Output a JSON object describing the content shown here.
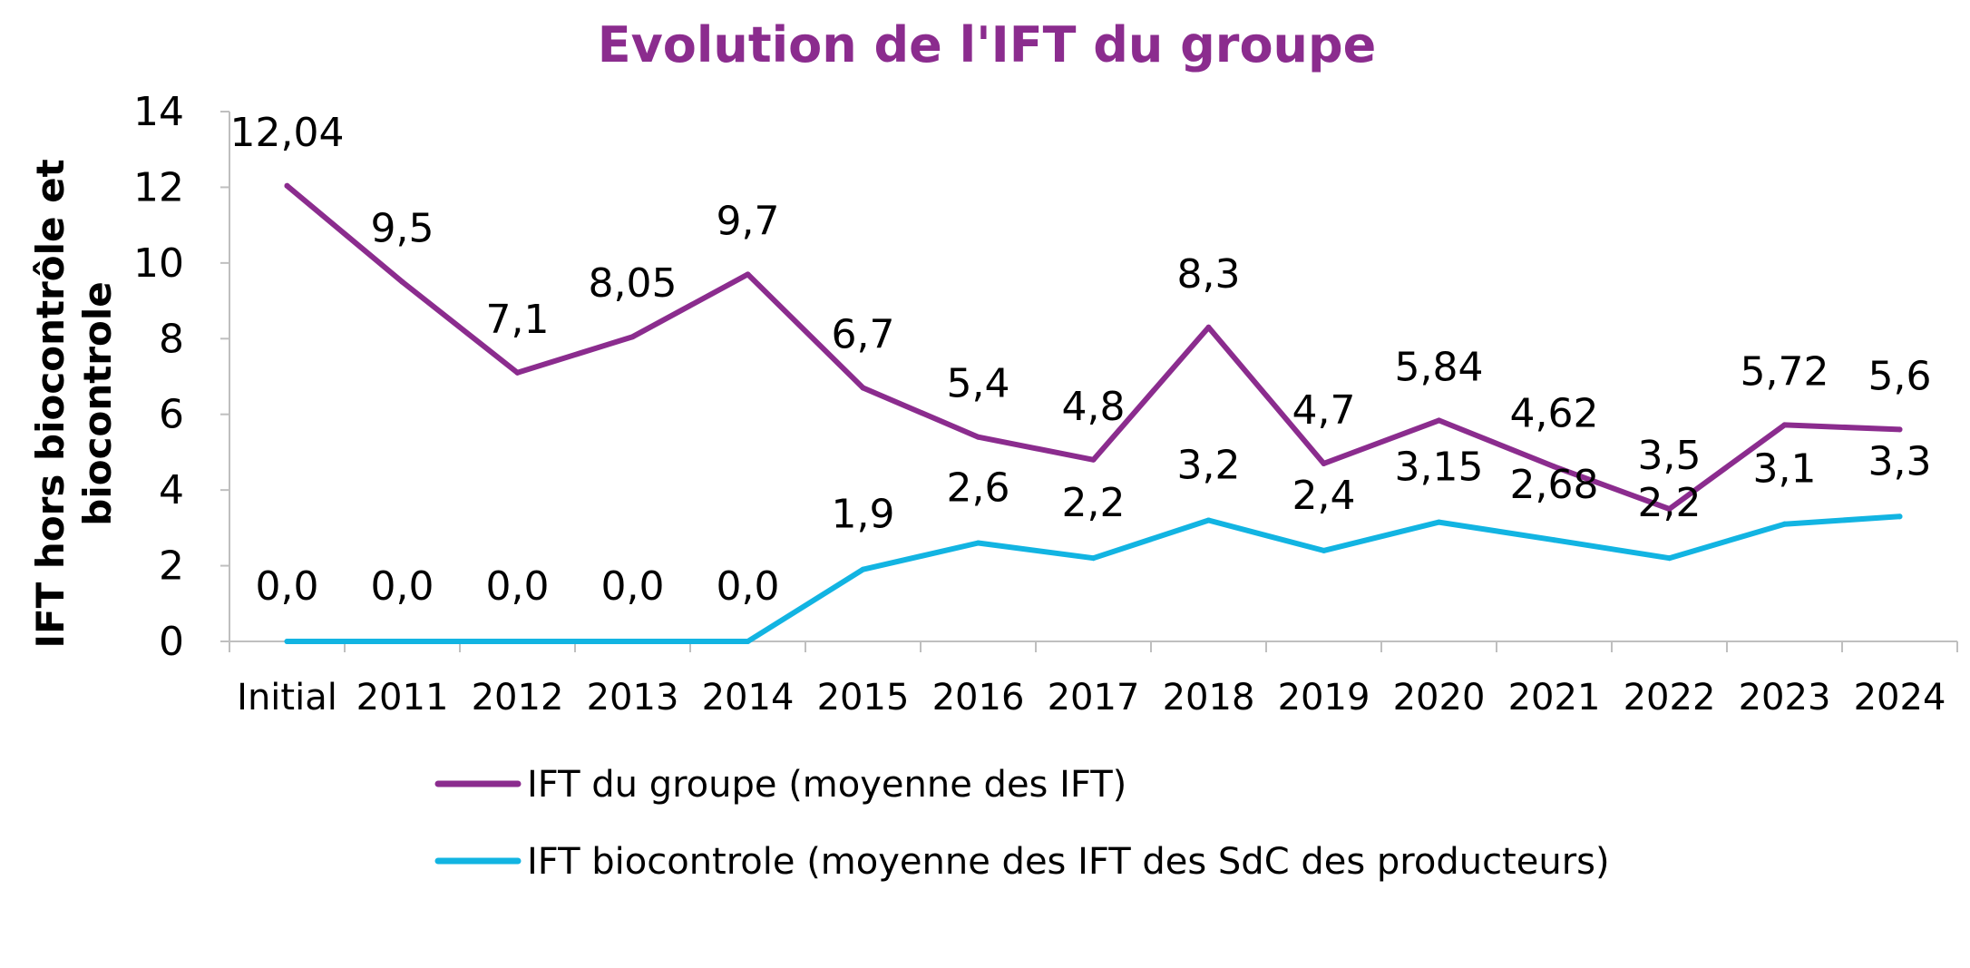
{
  "chart_data": {
    "type": "line",
    "title": "Evolution de l'IFT du groupe",
    "ylabel_line1": "IFT  hors biocontrôle et",
    "ylabel_line2": "biocontrole",
    "xlabel": "",
    "ylim": [
      0,
      14
    ],
    "yticks": [
      0,
      2,
      4,
      6,
      8,
      10,
      12,
      14
    ],
    "grid": false,
    "legend_position": "bottom",
    "categories": [
      "Initial",
      "2011",
      "2012",
      "2013",
      "2014",
      "2015",
      "2016",
      "2017",
      "2018",
      "2019",
      "2020",
      "2021",
      "2022",
      "2023",
      "2024"
    ],
    "series": [
      {
        "name": "IFT du groupe (moyenne des IFT)",
        "color": "#8B2C8E",
        "values": [
          12.04,
          9.5,
          7.1,
          8.05,
          9.7,
          6.7,
          5.4,
          4.8,
          8.3,
          4.7,
          5.84,
          4.62,
          3.5,
          5.72,
          5.6
        ],
        "labels": [
          "12,04",
          "9,5",
          "7,1",
          "8,05",
          "9,7",
          "6,7",
          "5,4",
          "4,8",
          "8,3",
          "4,7",
          "5,84",
          "4,62",
          "3,5",
          "5,72",
          "5,6"
        ]
      },
      {
        "name": "IFT biocontrole (moyenne des IFT des SdC des producteurs)",
        "color": "#12B4E2",
        "values": [
          0,
          0,
          0,
          0,
          0,
          1.9,
          2.6,
          2.2,
          3.2,
          2.4,
          3.15,
          2.68,
          2.2,
          3.1,
          3.3
        ],
        "labels": [
          "0,0",
          "0,0",
          "0,0",
          "0,0",
          "0,0",
          "1,9",
          "2,6",
          "2,2",
          "3,2",
          "2,4",
          "3,15",
          "2,68",
          "2,2",
          "3,1",
          "3,3"
        ]
      }
    ],
    "title_color": "#8B2C8E"
  }
}
